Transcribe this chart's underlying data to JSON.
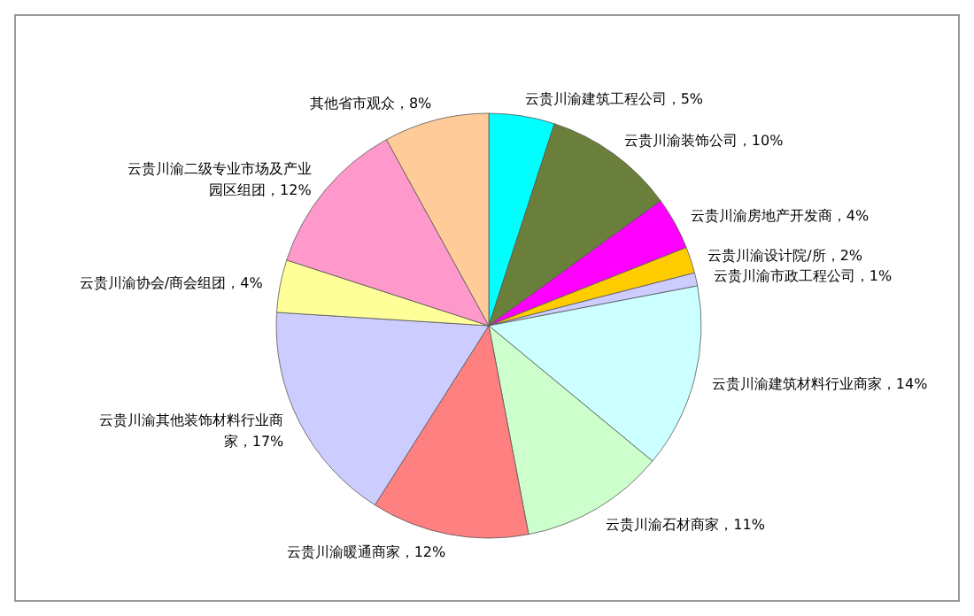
{
  "chart_data": {
    "type": "pie",
    "categories": [
      "云贵川渝建筑工程公司",
      "云贵川渝装饰公司",
      "云贵川渝房地产开发商",
      "云贵川渝设计院/所",
      "云贵川渝市政工程公司",
      "云贵川渝建筑材料行业商家",
      "云贵川渝石材商家",
      "云贵川渝暖通商家",
      "云贵川渝其他装饰材料行业商家",
      "云贵川渝协会/商会组团",
      "云贵川渝二级专业市场及产业园区组团",
      "其他省市观众"
    ],
    "values": [
      5,
      10,
      4,
      2,
      1,
      14,
      11,
      12,
      17,
      4,
      12,
      8
    ],
    "value_labels": [
      "5%",
      "10%",
      "4%",
      "2%",
      "1%",
      "14%",
      "11%",
      "12%",
      "17%",
      "4%",
      "12%",
      "8%"
    ],
    "colors": [
      "#00ffff",
      "#6b7f3c",
      "#ff00ff",
      "#ffcc00",
      "#ccccff",
      "#ccffff",
      "#ccffcc",
      "#ff8080",
      "#ccccff",
      "#ffff99",
      "#ff99cc",
      "#ffcc99"
    ]
  }
}
